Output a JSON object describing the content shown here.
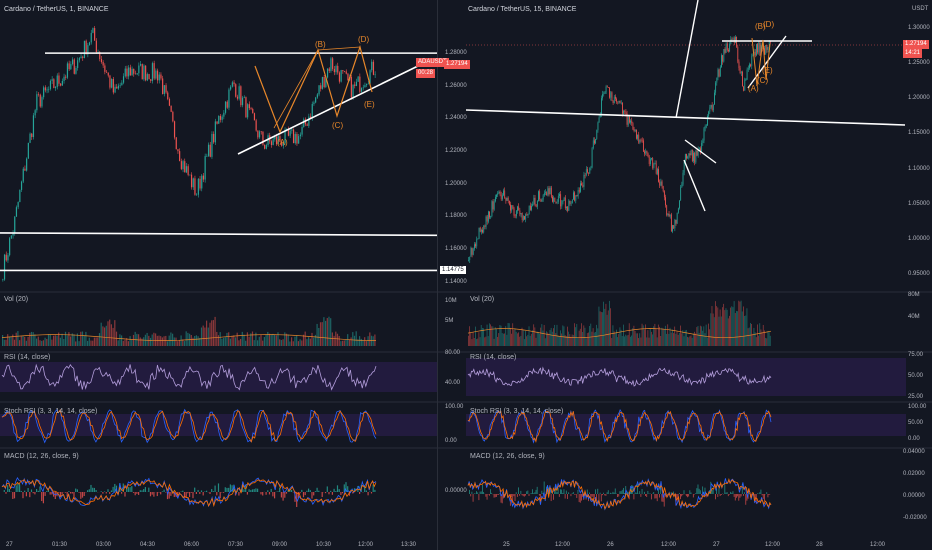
{
  "colors": {
    "background": "#131722",
    "up": "#26a69a",
    "down": "#ef5350",
    "drawing": "#ffffff",
    "wave": "#e8872a",
    "rsi": "#b39ddb",
    "rsi_band": "#2a1e4a",
    "stoch_k": "#2962ff",
    "stoch_d": "#ff6d00",
    "macd": "#2962ff",
    "signal": "#ff6d00"
  },
  "left": {
    "title": "Cardano / TetherUS, 1, BINANCE",
    "price_axis": [
      "1.28000",
      "1.26000",
      "1.24000",
      "1.22000",
      "1.20000",
      "1.18000",
      "1.16000",
      "1.14000"
    ],
    "price_range": [
      1.138,
      1.302
    ],
    "symbol_box": "ADAUSDT",
    "last_price": "1.27194",
    "countdown": "00:28",
    "support_label": "1.14775",
    "time_axis": [
      "27",
      "01:30",
      "03:00",
      "04:30",
      "06:00",
      "07:30",
      "09:00",
      "10:30",
      "12:00",
      "13:30"
    ],
    "wave_labels": [
      "(A)",
      "(B)",
      "(C)",
      "(D)",
      "(E)"
    ],
    "vol_label": "Vol (20)",
    "vol_axis": [
      "10M",
      "5M"
    ],
    "rsi_label": "RSI (14, close)",
    "rsi_axis": [
      "80.00",
      "40.00"
    ],
    "stoch_label": "Stoch RSI (3, 3, 14, 14, close)",
    "stoch_axis": [
      "100.00",
      "0.00"
    ],
    "macd_label": "MACD (12, 26, close, 9)",
    "macd_axis": [
      "0.00000"
    ]
  },
  "right": {
    "title": "Cardano / TetherUS, 15, BINANCE",
    "currency": "USDT",
    "price_axis": [
      "1.30000",
      "1.25000",
      "1.20000",
      "1.15000",
      "1.10000",
      "1.05000",
      "1.00000",
      "0.95000"
    ],
    "price_range": [
      0.935,
      1.315
    ],
    "last_price": "1.27194",
    "countdown": "14:21",
    "time_axis": [
      "25",
      "12:00",
      "26",
      "12:00",
      "27",
      "12:00",
      "28",
      "12:00"
    ],
    "wave_labels": [
      "(B)",
      "(D)",
      "(A)",
      "(C)",
      "(E)"
    ],
    "vol_label": "Vol (20)",
    "vol_axis": [
      "80M",
      "40M"
    ],
    "rsi_label": "RSI (14, close)",
    "rsi_axis": [
      "75.00",
      "50.00",
      "25.00"
    ],
    "stoch_label": "Stoch RSI (3, 3, 14, 14, close)",
    "stoch_axis": [
      "100.00",
      "50.00",
      "0.00"
    ],
    "macd_label": "MACD (12, 26, close, 9)",
    "macd_axis": [
      "0.04000",
      "0.02000",
      "0.00000",
      "-0.02000"
    ]
  }
}
